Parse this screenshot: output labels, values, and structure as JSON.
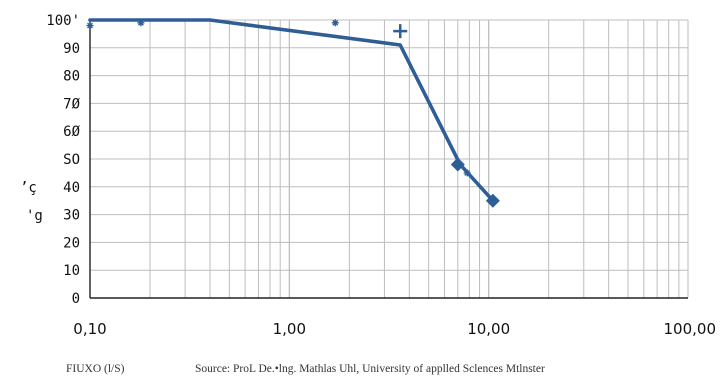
{
  "chart_data": {
    "type": "line",
    "x_scale": "log",
    "xlim": [
      0.1,
      100
    ],
    "ylim": [
      0,
      100
    ],
    "grid": true,
    "y_ticks": [
      "0",
      "10",
      "20",
      "30",
      "40",
      "SO",
      "6Ø",
      "7Ø",
      "80",
      "90",
      "100'"
    ],
    "y_tick_values": [
      0,
      10,
      20,
      30,
      40,
      50,
      60,
      70,
      80,
      90,
      100
    ],
    "x_ticks": [
      "0,10",
      "1,00",
      "10,00",
      "100,00"
    ],
    "x_tick_values": [
      0.1,
      1,
      10,
      100
    ],
    "ylabel_lines": [
      "’ç",
      "'g"
    ],
    "xlabel": "FIUXO (l/S)",
    "source_note": "Source: ProL De.•lng. Mathlas Uhl, University of applled Sclences Mtlnster",
    "series": [
      {
        "color": "#2f5e96",
        "line_x": [
          0.1,
          0.4,
          3.6,
          7.2,
          10.5
        ],
        "line_y": [
          100,
          100,
          91,
          48,
          35
        ],
        "markers": [
          {
            "x": 7.0,
            "y": 48,
            "shape": "diamond"
          },
          {
            "x": 10.5,
            "y": 35,
            "shape": "diamond"
          },
          {
            "x": 3.6,
            "y": 96,
            "shape": "plus"
          },
          {
            "x": 1.7,
            "y": 99,
            "shape": "star"
          },
          {
            "x": 0.18,
            "y": 99,
            "shape": "star"
          },
          {
            "x": 0.1,
            "y": 98,
            "shape": "star"
          },
          {
            "x": 7.8,
            "y": 45,
            "shape": "star"
          }
        ]
      }
    ]
  }
}
